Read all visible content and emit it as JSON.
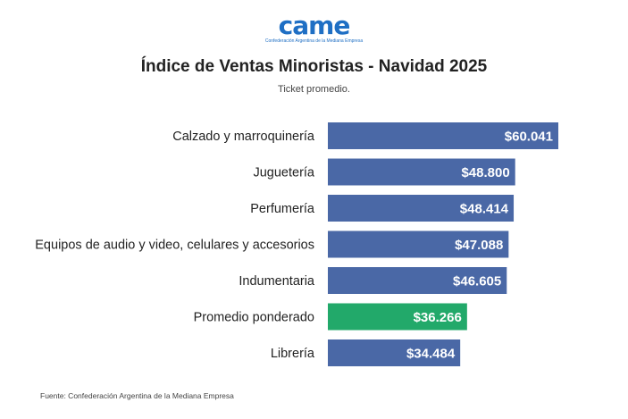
{
  "logo": {
    "text": "came",
    "tagline": "Confederación Argentina de la Mediana Empresa"
  },
  "colors": {
    "bar": "#4a68a6",
    "highlight": "#22a96a",
    "logo": "#1f6fc4"
  },
  "chart_data": {
    "type": "bar",
    "orientation": "horizontal",
    "title": "Índice de Ventas Minoristas - Navidad 2025",
    "subtitle": "Ticket promedio.",
    "categories": [
      "Calzado y marroquinería",
      "Juguetería",
      "Perfumería",
      "Equipos de audio y video, celulares y accesorios",
      "Indumentaria",
      "Promedio ponderado",
      "Librería"
    ],
    "values": [
      60041,
      48800,
      48414,
      47088,
      46605,
      36266,
      34484
    ],
    "value_labels": [
      "$60.041",
      "$48.800",
      "$48.414",
      "$47.088",
      "$46.605",
      "$36.266",
      "$34.484"
    ],
    "highlight_category": "Promedio ponderado",
    "grid": false,
    "legend": "none"
  },
  "footer": {
    "source": "Fuente: Confederación Argentina de la Mediana Empresa"
  }
}
